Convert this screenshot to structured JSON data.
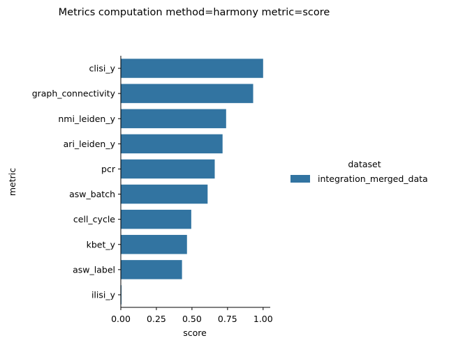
{
  "chart_data": {
    "type": "bar",
    "orientation": "horizontal",
    "title": "Metrics computation method=harmony metric=score",
    "xlabel": "score",
    "ylabel": "metric",
    "xlim": [
      0,
      1.05
    ],
    "xticks": [
      0.0,
      0.25,
      0.5,
      0.75,
      1.0
    ],
    "xtick_labels": [
      "0.00",
      "0.25",
      "0.50",
      "0.75",
      "1.00"
    ],
    "grid": false,
    "legend_position": "right",
    "legend_title": "dataset",
    "categories": [
      "clisi_y",
      "graph_connectivity",
      "nmi_leiden_y",
      "ari_leiden_y",
      "pcr",
      "asw_batch",
      "cell_cycle",
      "kbet_y",
      "asw_label",
      "ilisi_y"
    ],
    "series": [
      {
        "name": "integration_merged_data",
        "color": "#3274a1",
        "values": [
          1.0,
          0.93,
          0.74,
          0.715,
          0.66,
          0.61,
          0.495,
          0.465,
          0.43,
          0.005
        ]
      }
    ]
  }
}
